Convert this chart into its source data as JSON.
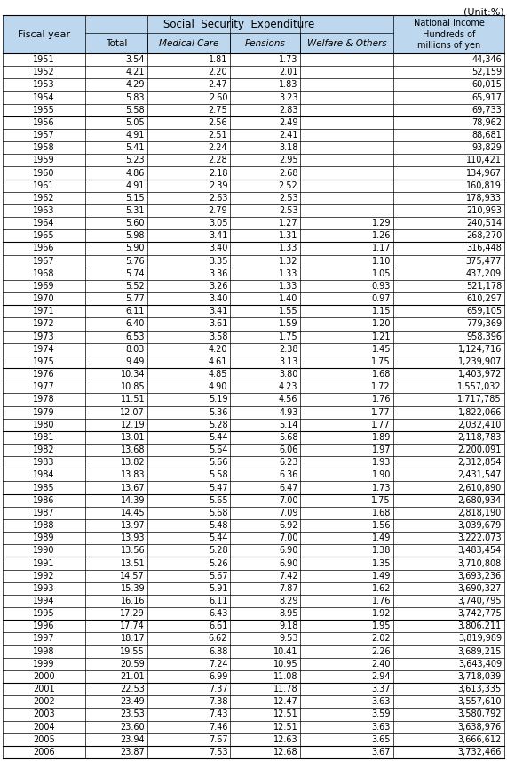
{
  "title_unit": "(Unit:%)",
  "rows": [
    [
      "1951",
      "3.54",
      "1.81",
      "1.73",
      "",
      "44,346"
    ],
    [
      "1952",
      "4.21",
      "2.20",
      "2.01",
      "",
      "52,159"
    ],
    [
      "1953",
      "4.29",
      "2.47",
      "1.83",
      "",
      "60,015"
    ],
    [
      "1954",
      "5.83",
      "2.60",
      "3.23",
      "",
      "65,917"
    ],
    [
      "1955",
      "5.58",
      "2.75",
      "2.83",
      "",
      "69,733"
    ],
    [
      "1956",
      "5.05",
      "2.56",
      "2.49",
      "",
      "78,962"
    ],
    [
      "1957",
      "4.91",
      "2.51",
      "2.41",
      "",
      "88,681"
    ],
    [
      "1958",
      "5.41",
      "2.24",
      "3.18",
      "",
      "93,829"
    ],
    [
      "1959",
      "5.23",
      "2.28",
      "2.95",
      "",
      "110,421"
    ],
    [
      "1960",
      "4.86",
      "2.18",
      "2.68",
      "",
      "134,967"
    ],
    [
      "1961",
      "4.91",
      "2.39",
      "2.52",
      "",
      "160,819"
    ],
    [
      "1962",
      "5.15",
      "2.63",
      "2.53",
      "",
      "178,933"
    ],
    [
      "1963",
      "5.31",
      "2.79",
      "2.53",
      "",
      "210,993"
    ],
    [
      "1964",
      "5.60",
      "3.05",
      "1.27",
      "1.29",
      "240,514"
    ],
    [
      "1965",
      "5.98",
      "3.41",
      "1.31",
      "1.26",
      "268,270"
    ],
    [
      "1966",
      "5.90",
      "3.40",
      "1.33",
      "1.17",
      "316,448"
    ],
    [
      "1967",
      "5.76",
      "3.35",
      "1.32",
      "1.10",
      "375,477"
    ],
    [
      "1968",
      "5.74",
      "3.36",
      "1.33",
      "1.05",
      "437,209"
    ],
    [
      "1969",
      "5.52",
      "3.26",
      "1.33",
      "0.93",
      "521,178"
    ],
    [
      "1970",
      "5.77",
      "3.40",
      "1.40",
      "0.97",
      "610,297"
    ],
    [
      "1971",
      "6.11",
      "3.41",
      "1.55",
      "1.15",
      "659,105"
    ],
    [
      "1972",
      "6.40",
      "3.61",
      "1.59",
      "1.20",
      "779,369"
    ],
    [
      "1973",
      "6.53",
      "3.58",
      "1.75",
      "1.21",
      "958,396"
    ],
    [
      "1974",
      "8.03",
      "4.20",
      "2.38",
      "1.45",
      "1,124,716"
    ],
    [
      "1975",
      "9.49",
      "4.61",
      "3.13",
      "1.75",
      "1,239,907"
    ],
    [
      "1976",
      "10.34",
      "4.85",
      "3.80",
      "1.68",
      "1,403,972"
    ],
    [
      "1977",
      "10.85",
      "4.90",
      "4.23",
      "1.72",
      "1,557,032"
    ],
    [
      "1978",
      "11.51",
      "5.19",
      "4.56",
      "1.76",
      "1,717,785"
    ],
    [
      "1979",
      "12.07",
      "5.36",
      "4.93",
      "1.77",
      "1,822,066"
    ],
    [
      "1980",
      "12.19",
      "5.28",
      "5.14",
      "1.77",
      "2,032,410"
    ],
    [
      "1981",
      "13.01",
      "5.44",
      "5.68",
      "1.89",
      "2,118,783"
    ],
    [
      "1982",
      "13.68",
      "5.64",
      "6.06",
      "1.97",
      "2,200,091"
    ],
    [
      "1983",
      "13.82",
      "5.66",
      "6.23",
      "1.93",
      "2,312,854"
    ],
    [
      "1984",
      "13.83",
      "5.58",
      "6.36",
      "1.90",
      "2,431,547"
    ],
    [
      "1985",
      "13.67",
      "5.47",
      "6.47",
      "1.73",
      "2,610,890"
    ],
    [
      "1986",
      "14.39",
      "5.65",
      "7.00",
      "1.75",
      "2,680,934"
    ],
    [
      "1987",
      "14.45",
      "5.68",
      "7.09",
      "1.68",
      "2,818,190"
    ],
    [
      "1988",
      "13.97",
      "5.48",
      "6.92",
      "1.56",
      "3,039,679"
    ],
    [
      "1989",
      "13.93",
      "5.44",
      "7.00",
      "1.49",
      "3,222,073"
    ],
    [
      "1990",
      "13.56",
      "5.28",
      "6.90",
      "1.38",
      "3,483,454"
    ],
    [
      "1991",
      "13.51",
      "5.26",
      "6.90",
      "1.35",
      "3,710,808"
    ],
    [
      "1992",
      "14.57",
      "5.67",
      "7.42",
      "1.49",
      "3,693,236"
    ],
    [
      "1993",
      "15.39",
      "5.91",
      "7.87",
      "1.62",
      "3,690,327"
    ],
    [
      "1994",
      "16.16",
      "6.11",
      "8.29",
      "1.76",
      "3,740,795"
    ],
    [
      "1995",
      "17.29",
      "6.43",
      "8.95",
      "1.92",
      "3,742,775"
    ],
    [
      "1996",
      "17.74",
      "6.61",
      "9.18",
      "1.95",
      "3,806,211"
    ],
    [
      "1997",
      "18.17",
      "6.62",
      "9.53",
      "2.02",
      "3,819,989"
    ],
    [
      "1998",
      "19.55",
      "6.88",
      "10.41",
      "2.26",
      "3,689,215"
    ],
    [
      "1999",
      "20.59",
      "7.24",
      "10.95",
      "2.40",
      "3,643,409"
    ],
    [
      "2000",
      "21.01",
      "6.99",
      "11.08",
      "2.94",
      "3,718,039"
    ],
    [
      "2001",
      "22.53",
      "7.37",
      "11.78",
      "3.37",
      "3,613,335"
    ],
    [
      "2002",
      "23.49",
      "7.38",
      "12.47",
      "3.63",
      "3,557,610"
    ],
    [
      "2003",
      "23.53",
      "7.43",
      "12.51",
      "3.59",
      "3,580,792"
    ],
    [
      "2004",
      "23.60",
      "7.46",
      "12.51",
      "3.63",
      "3,638,976"
    ],
    [
      "2005",
      "23.94",
      "7.67",
      "12.63",
      "3.65",
      "3,666,612"
    ],
    [
      "2006",
      "23.87",
      "7.53",
      "12.68",
      "3.67",
      "3,732,466"
    ]
  ],
  "group_borders": [
    5,
    10,
    15,
    20,
    25,
    30,
    35,
    40,
    45,
    50,
    55
  ],
  "last_row_thick_below": true,
  "header_bg": "#bdd7ee",
  "border_color": "#000000",
  "text_color": "#000000"
}
